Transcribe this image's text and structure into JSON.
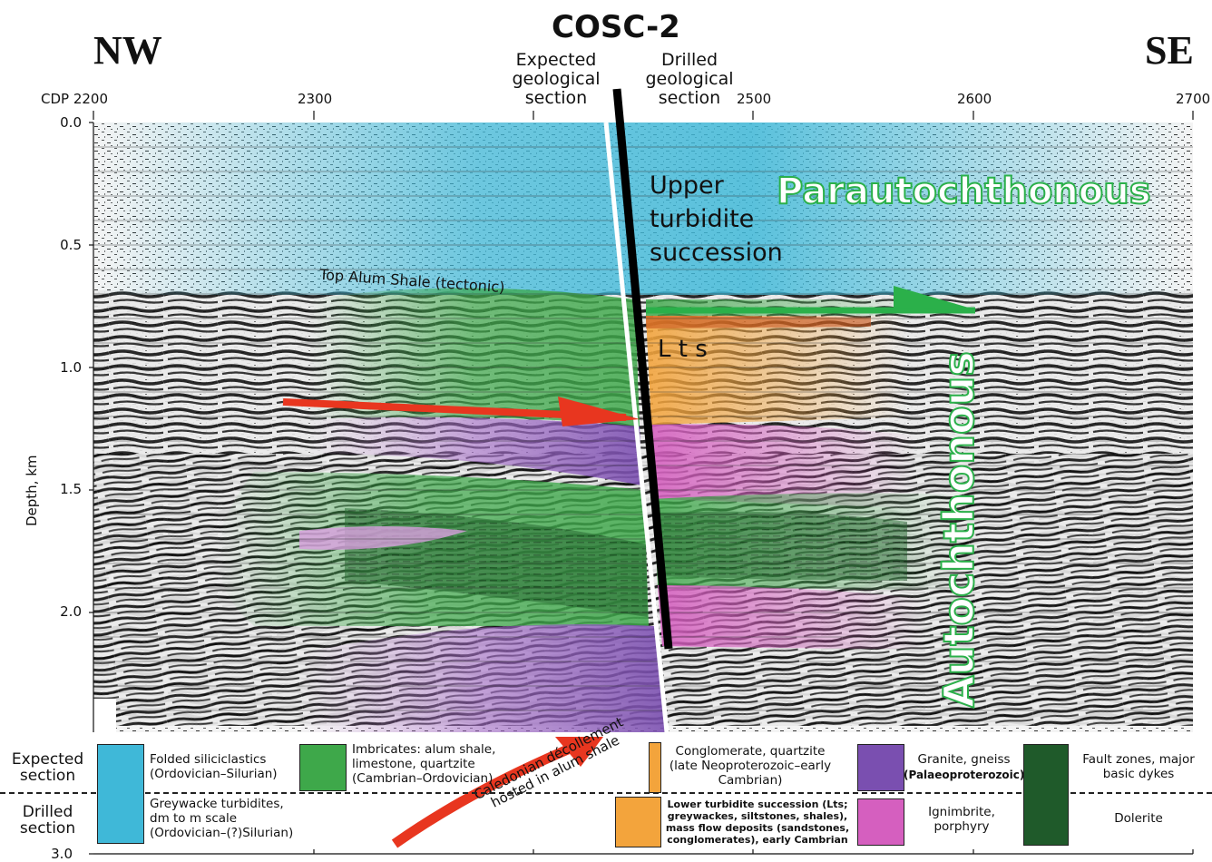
{
  "header": {
    "well_name": "COSC-2",
    "left_direction": "NW",
    "right_direction": "SE",
    "expected_label": "Expected\ngeological\nsection",
    "drilled_label": "Drilled\ngeological\nsection"
  },
  "axes": {
    "cdp_ticks": [
      "CDP 2200",
      "2300",
      "2400",
      "2500",
      "2600",
      "2700"
    ],
    "depth_ticks": [
      "0.0",
      "0.5",
      "1.0",
      "1.5",
      "2.0",
      "3.0"
    ],
    "depth_label": "Depth, km"
  },
  "annotations": {
    "upper_turbidite": "Upper\nturbidite\nsuccession",
    "parautochthonous": "Parautochthonous",
    "autochthonous": "Autochthonous",
    "top_alum_shale": "Top Alum Shale (tectonic)",
    "lts": "L t s",
    "decollement": "Caledonian décollement\nhosted in alum shale"
  },
  "legend": {
    "expected_row_label": "Expected\nsection",
    "drilled_row_label": "Drilled\nsection",
    "folded_siliciclastics": "Folded siliciclastics\n(Ordovician–Silurian)",
    "greywacke": "Greywacke turbidites,\ndm to m scale\n(Ordovician–(?)Silurian)",
    "imbricates": "Imbricates: alum shale,\nlimestone, quartzite\n(Cambrian–Ordovician)",
    "conglomerate": "Conglomerate, quartzite\n(late Neoproterozoic–early\nCambrian)",
    "lower_turbidite": "Lower turbidite succession (Lts;\ngreywackes, siltstones, shales),\nmass flow deposits (sandstones,\nconglomerates), early Cambrian",
    "granite": "Granite, gneiss",
    "granite_age": "(Palaeoproterozoic)",
    "ignimbrite": "Ignimbrite,\nporphyry",
    "fault_zones": "Fault zones, major\nbasic dykes",
    "dolerite": "Dolerite"
  },
  "colors": {
    "cyan": "#3fb8d8",
    "green": "#3ea84a",
    "orange": "#f3a43c",
    "purple": "#7a4fb0",
    "magenta": "#d55fbf",
    "dark_green": "#1f5a2a",
    "red_arrow": "#e8361f",
    "green_text": "#2bb04a"
  }
}
